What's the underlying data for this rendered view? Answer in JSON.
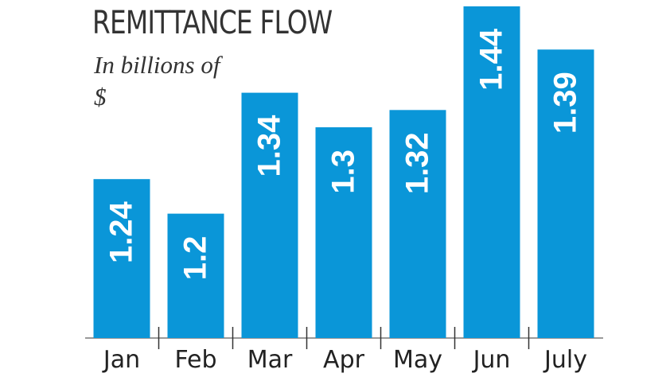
{
  "chart_data": {
    "type": "bar",
    "title": "REMITTANCE FLOW",
    "subtitle": "In billions of $",
    "categories": [
      "Jan",
      "Feb",
      "Mar",
      "Apr",
      "May",
      "Jun",
      "July"
    ],
    "values": [
      1.24,
      1.2,
      1.34,
      1.3,
      1.32,
      1.44,
      1.39
    ],
    "color": "#0a96d8"
  }
}
